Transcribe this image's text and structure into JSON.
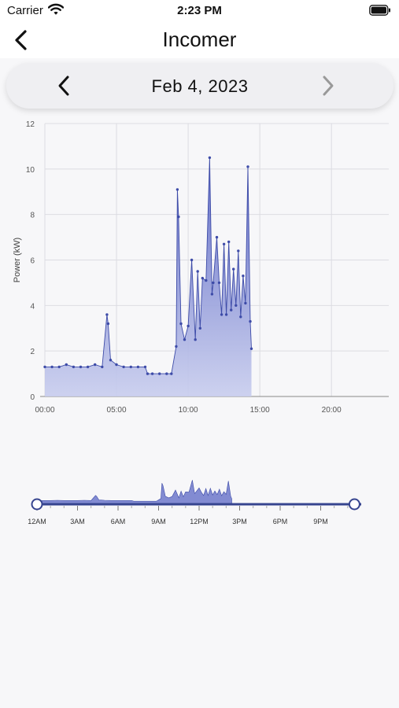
{
  "status": {
    "carrier": "Carrier",
    "time": "2:23 PM"
  },
  "nav": {
    "title": "Incomer"
  },
  "date_selector": {
    "label": "Feb 4, 2023"
  },
  "colors": {
    "series": "#3d4ba8",
    "fill_top": "#5b67c4",
    "fill_bottom": "#c8cdee",
    "track": "#36448f"
  },
  "chart_data": [
    {
      "type": "area",
      "ylabel": "Power (kW)",
      "xlabel": "",
      "ylim": [
        0,
        12
      ],
      "yticks": [
        "0",
        "2",
        "4",
        "6",
        "8",
        "10",
        "12"
      ],
      "xlim_hours": [
        0,
        24
      ],
      "xticks": [
        "00:00",
        "05:00",
        "10:00",
        "15:00",
        "20:00"
      ],
      "grid": true,
      "series": [
        {
          "x_time": [
            "00:00",
            "00:30",
            "01:00",
            "01:30",
            "02:00",
            "02:30",
            "03:00",
            "03:30",
            "04:00",
            "04:20",
            "04:25",
            "04:35",
            "05:00",
            "05:30",
            "06:00",
            "06:30",
            "07:00",
            "07:10",
            "07:30",
            "08:00",
            "08:30",
            "08:50",
            "09:10",
            "09:15",
            "09:20",
            "09:30",
            "09:45",
            "10:00",
            "10:15",
            "10:30",
            "10:40",
            "10:50",
            "11:00",
            "11:15",
            "11:30",
            "11:40",
            "11:45",
            "12:00",
            "12:10",
            "12:20",
            "12:30",
            "12:40",
            "12:50",
            "13:00",
            "13:10",
            "13:20",
            "13:30",
            "13:40",
            "13:50",
            "14:00",
            "14:10",
            "14:20",
            "14:25"
          ],
          "values": [
            1.3,
            1.3,
            1.3,
            1.4,
            1.3,
            1.3,
            1.3,
            1.4,
            1.3,
            3.6,
            3.2,
            1.6,
            1.4,
            1.3,
            1.3,
            1.3,
            1.3,
            1.0,
            1.0,
            1.0,
            1.0,
            1.0,
            2.2,
            9.1,
            7.9,
            3.2,
            2.5,
            3.1,
            6.0,
            2.5,
            5.5,
            3.0,
            5.2,
            5.1,
            10.5,
            4.5,
            5.0,
            7.0,
            5.0,
            3.6,
            6.7,
            3.6,
            6.8,
            3.8,
            5.6,
            4.0,
            6.4,
            3.5,
            5.3,
            4.1,
            10.1,
            3.3,
            2.1
          ]
        }
      ]
    },
    {
      "type": "area",
      "title": "",
      "xticks": [
        "12AM",
        "3AM",
        "6AM",
        "9AM",
        "12PM",
        "3PM",
        "6PM",
        "9PM"
      ],
      "range_hours": [
        0,
        23.5
      ]
    }
  ]
}
